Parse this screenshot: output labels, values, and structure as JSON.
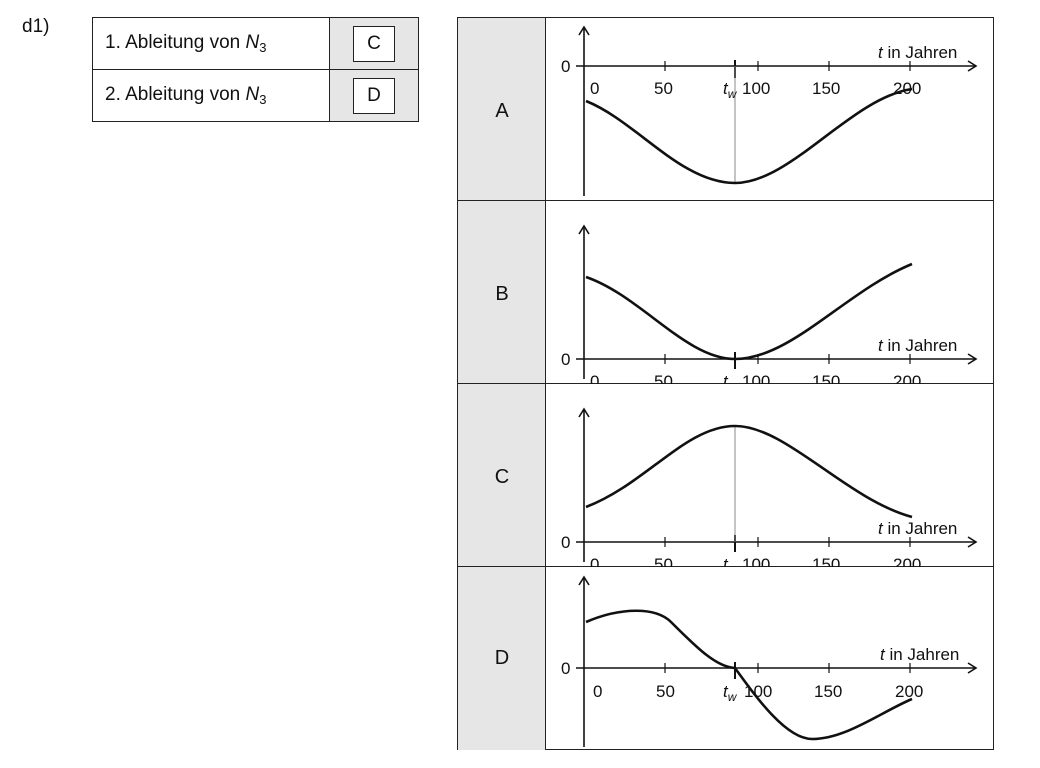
{
  "task_label": "d1)",
  "answer_table": [
    {
      "prefix": "1. Ableitung von ",
      "var": "N",
      "sub": "3",
      "answer": "C"
    },
    {
      "prefix": "2. Ableitung von ",
      "var": "N",
      "sub": "3",
      "answer": "D"
    }
  ],
  "axis": {
    "x_label_var": "t",
    "x_label_rest": " in Jahren",
    "zero_label": "0",
    "ticks": [
      "0",
      "50",
      "100",
      "150",
      "200"
    ],
    "tw_var": "t",
    "tw_sub": "w"
  },
  "graphs": [
    {
      "label": "A"
    },
    {
      "label": "B"
    },
    {
      "label": "C"
    },
    {
      "label": "D"
    }
  ],
  "chart_data": [
    {
      "type": "line",
      "label": "A",
      "x_range": [
        0,
        200
      ],
      "turning_point_x": 92,
      "description_points": [
        [
          0,
          -0.45
        ],
        [
          92,
          -1.45
        ],
        [
          200,
          -0.3
        ]
      ]
    },
    {
      "type": "line",
      "label": "B",
      "x_range": [
        0,
        200
      ],
      "turning_point_x": 92,
      "description_points": [
        [
          0,
          0.9
        ],
        [
          92,
          0
        ],
        [
          200,
          1.0
        ]
      ]
    },
    {
      "type": "line",
      "label": "C",
      "x_range": [
        0,
        200
      ],
      "turning_point_x": 92,
      "description_points": [
        [
          0,
          0.35
        ],
        [
          92,
          1.2
        ],
        [
          200,
          0.3
        ]
      ]
    },
    {
      "type": "line",
      "label": "D",
      "x_range": [
        0,
        200
      ],
      "turning_point_x": 92,
      "description_points": [
        [
          0,
          0.5
        ],
        [
          40,
          0.75
        ],
        [
          92,
          0
        ],
        [
          140,
          -0.7
        ],
        [
          200,
          -0.35
        ]
      ]
    }
  ]
}
